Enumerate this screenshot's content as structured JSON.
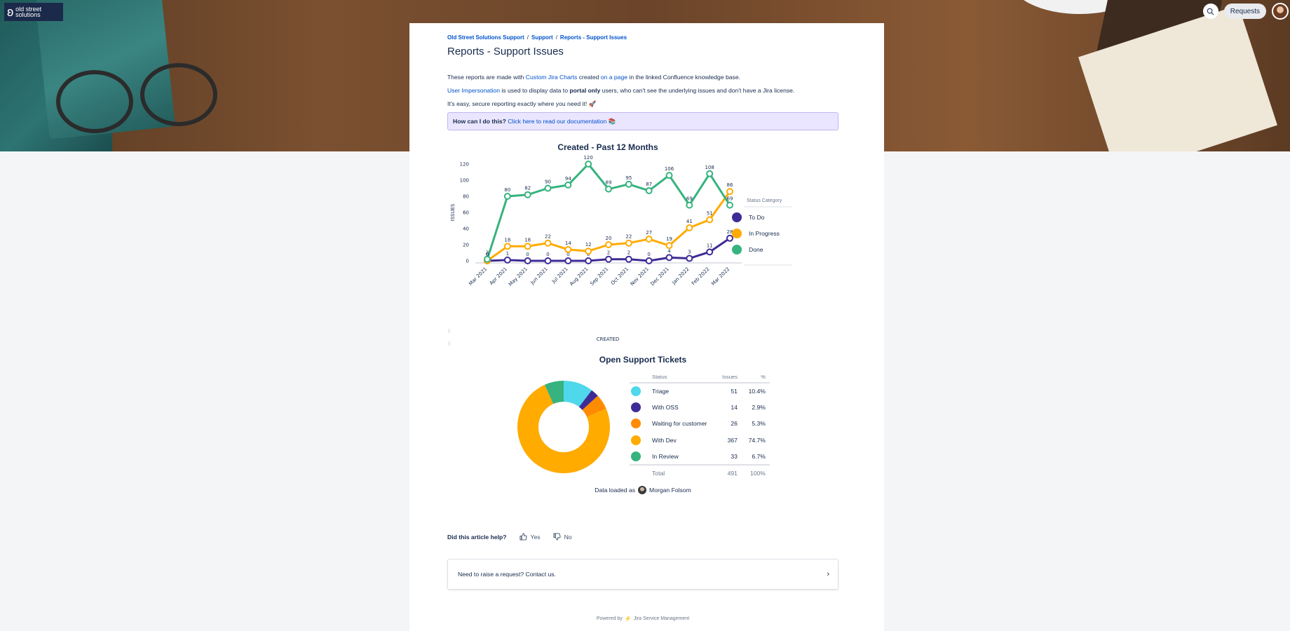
{
  "header": {
    "logo_line1": "old street",
    "logo_line2": "solutions",
    "requests_label": "Requests",
    "search_icon": "search-icon"
  },
  "breadcrumb": [
    "Old Street Solutions Support",
    "Support",
    "Reports - Support Issues"
  ],
  "page": {
    "title": "Reports - Support Issues",
    "p1_pre": "These reports are made with ",
    "p1_link1": "Custom Jira Charts",
    "p1_mid": " created ",
    "p1_link2": "on a page",
    "p1_post": " in the linked Confluence knowledge base.",
    "p2_link": "User Impersonation",
    "p2_mid": " is used to display data to ",
    "p2_bold": "portal only",
    "p2_post": " users, who can't see the underlying issues and don't have a Jira license.",
    "p3": "It's easy, secure reporting exactly where you need it! 🚀",
    "notice_bold": "How can I do this?",
    "notice_link": "Click here to read our documentation 📚"
  },
  "chart_data": [
    {
      "type": "line",
      "title": "Created - Past 12 Months",
      "xlabel": "CREATED",
      "ylabel": "ISSUES",
      "ylim": [
        0,
        120
      ],
      "yticks": [
        0,
        20,
        40,
        60,
        80,
        100,
        120
      ],
      "categories": [
        "Mar 2021",
        "Apr 2021",
        "May 2021",
        "Jun 2021",
        "Jul 2021",
        "Aug 2021",
        "Sep 2021",
        "Oct 2021",
        "Nov 2021",
        "Dec 2021",
        "Jan 2022",
        "Feb 2022",
        "Mar 2022"
      ],
      "legend_title": "Status Category",
      "legend_position": "right",
      "series": [
        {
          "name": "To Do",
          "color": "#3f2b96",
          "values": [
            0,
            1,
            0,
            0,
            0,
            0,
            2,
            2,
            0,
            4,
            3,
            11,
            28
          ]
        },
        {
          "name": "In Progress",
          "color": "#ffab00",
          "values": [
            0,
            18,
            18,
            22,
            14,
            12,
            20,
            22,
            27,
            19,
            41,
            51,
            86
          ]
        },
        {
          "name": "Done",
          "color": "#36b37e",
          "values": [
            2,
            80,
            82,
            90,
            94,
            120,
            89,
            95,
            87,
            106,
            69,
            108,
            69
          ]
        }
      ]
    },
    {
      "type": "pie",
      "title": "Open Support Tickets",
      "columns": [
        "Status",
        "Issues",
        "%"
      ],
      "slices": [
        {
          "label": "Triage",
          "value": 51,
          "pct": "10.4%",
          "color": "#4fd8eb"
        },
        {
          "label": "With OSS",
          "value": 14,
          "pct": "2.9%",
          "color": "#3f2b96"
        },
        {
          "label": "Waiting for customer",
          "value": 26,
          "pct": "5.3%",
          "color": "#ff8b00"
        },
        {
          "label": "With Dev",
          "value": 367,
          "pct": "74.7%",
          "color": "#ffab00"
        },
        {
          "label": "In Review",
          "value": 33,
          "pct": "6.7%",
          "color": "#36b37e"
        }
      ],
      "total_label": "Total",
      "total_value": "491",
      "total_pct": "100%"
    }
  ],
  "loaded": {
    "prefix": "Data loaded as",
    "user": "Morgan Folsom"
  },
  "feedback": {
    "question": "Did this article help?",
    "yes": "Yes",
    "no": "No"
  },
  "raise": {
    "text": "Need to raise a request? Contact us."
  },
  "footer": {
    "powered": "Powered by",
    "product": "Jira Service Management"
  }
}
